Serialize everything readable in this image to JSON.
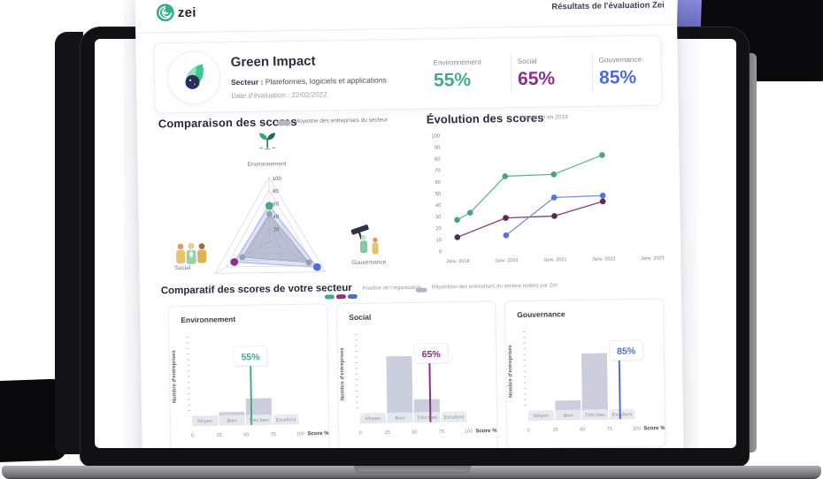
{
  "header": {
    "brand": "zei",
    "title": "Résultats de l'évaluation Zei"
  },
  "company": {
    "name": "Green Impact",
    "sector_label": "Secteur :",
    "sector_value": "Plateformes, logiciels et applications",
    "date_label": "Date d'évaluation :",
    "date_value": "22/02/2022",
    "scores": [
      {
        "label": "Environnement",
        "value": "55%",
        "color": "#47ab87"
      },
      {
        "label": "Social",
        "value": "65%",
        "color": "#8e2f8a"
      },
      {
        "label": "Gouvernance",
        "value": "85%",
        "color": "#4c6ce0"
      }
    ]
  },
  "sections": {
    "comparison": {
      "title": "Comparaison des scores",
      "legend": "Moyenne des entreprises du secteur"
    },
    "evolution": {
      "title": "Évolution des scores",
      "subtitle": "Inscription en 2019"
    },
    "sector": {
      "title": "Comparatif des scores de votre secteur",
      "legend_org": "Position de l'organisation",
      "legend_sector": "Répartition des entreprises du secteur notées par Zei"
    }
  },
  "chart_data": [
    {
      "type": "radar",
      "title": "Comparaison des scores",
      "axes": [
        "Environnement",
        "Social",
        "Gouvernance"
      ],
      "max": 100,
      "rings": [
        20,
        40,
        60,
        80,
        100
      ],
      "series": [
        {
          "name": "Position de l'organisation",
          "values": [
            55,
            65,
            85
          ],
          "fill": "rgba(171,180,238,0.40)",
          "stroke": "#a9b2ee",
          "point_colors": [
            "#47ab87",
            "#8e2f8a",
            "#4c6ce0"
          ]
        },
        {
          "name": "Moyenne des entreprises du secteur",
          "values": [
            42,
            50,
            70
          ],
          "fill": "rgba(145,150,164,0.45)",
          "stroke": "#9aa0ad",
          "point_colors": [
            "#9aa0ad",
            "#9aa0ad",
            "#9aa0ad"
          ]
        }
      ]
    },
    {
      "type": "line",
      "title": "Évolution des scores",
      "subtitle": "Inscription en 2019",
      "x_labels": [
        "Janv. 2019",
        "Janv. 2020",
        "Janv. 2021",
        "Janv. 2022",
        "Janv. 2023"
      ],
      "ylim": [
        0,
        100
      ],
      "ytick_step": 10,
      "series": [
        {
          "name": "Environnement",
          "color": "#63b692",
          "dot_color": "#4ba37d",
          "x": [
            0,
            0.27,
            1,
            2,
            3
          ],
          "values": [
            27,
            33,
            64,
            65,
            81
          ]
        },
        {
          "name": "Social",
          "color": "#7c3f76",
          "dot_color": "#572a50",
          "x": [
            0,
            1,
            2,
            3
          ],
          "values": [
            12,
            28,
            29,
            41
          ]
        },
        {
          "name": "Gouvernance",
          "color": "#7b8ce8",
          "dot_color": "#5b6fe4",
          "x": [
            1,
            2,
            3
          ],
          "values": [
            13,
            45,
            46
          ]
        }
      ]
    },
    {
      "type": "bar",
      "title": "Environnement",
      "categories": [
        "Moyen",
        "Bien",
        "Très bien",
        "Excellent"
      ],
      "values": [
        11,
        15,
        30,
        3
      ],
      "xticks": [
        0,
        25,
        50,
        75,
        100
      ],
      "xlabel": "Score %",
      "ylabel": "Nombre d'entreprises",
      "marker": {
        "value": 55,
        "label": "55%",
        "color": "#47ab87"
      }
    },
    {
      "type": "bar",
      "title": "Social",
      "categories": [
        "Moyen",
        "Bien",
        "Très bien",
        "Excellent"
      ],
      "values": [
        7,
        75,
        26,
        2
      ],
      "xticks": [
        0,
        25,
        50,
        75,
        100
      ],
      "xlabel": "Score %",
      "ylabel": "Nombre d'entreprises",
      "marker": {
        "value": 65,
        "label": "65%",
        "color": "#8e2f8a"
      }
    },
    {
      "type": "bar",
      "title": "Gouvernance",
      "categories": [
        "Moyen",
        "Bien",
        "Très bien",
        "Excellent"
      ],
      "values": [
        9,
        22,
        75,
        3
      ],
      "xticks": [
        0,
        25,
        50,
        75,
        100
      ],
      "xlabel": "Score %",
      "ylabel": "Nombre d'entreprises",
      "marker": {
        "value": 85,
        "label": "85%",
        "color": "#4c6ce0"
      }
    }
  ]
}
